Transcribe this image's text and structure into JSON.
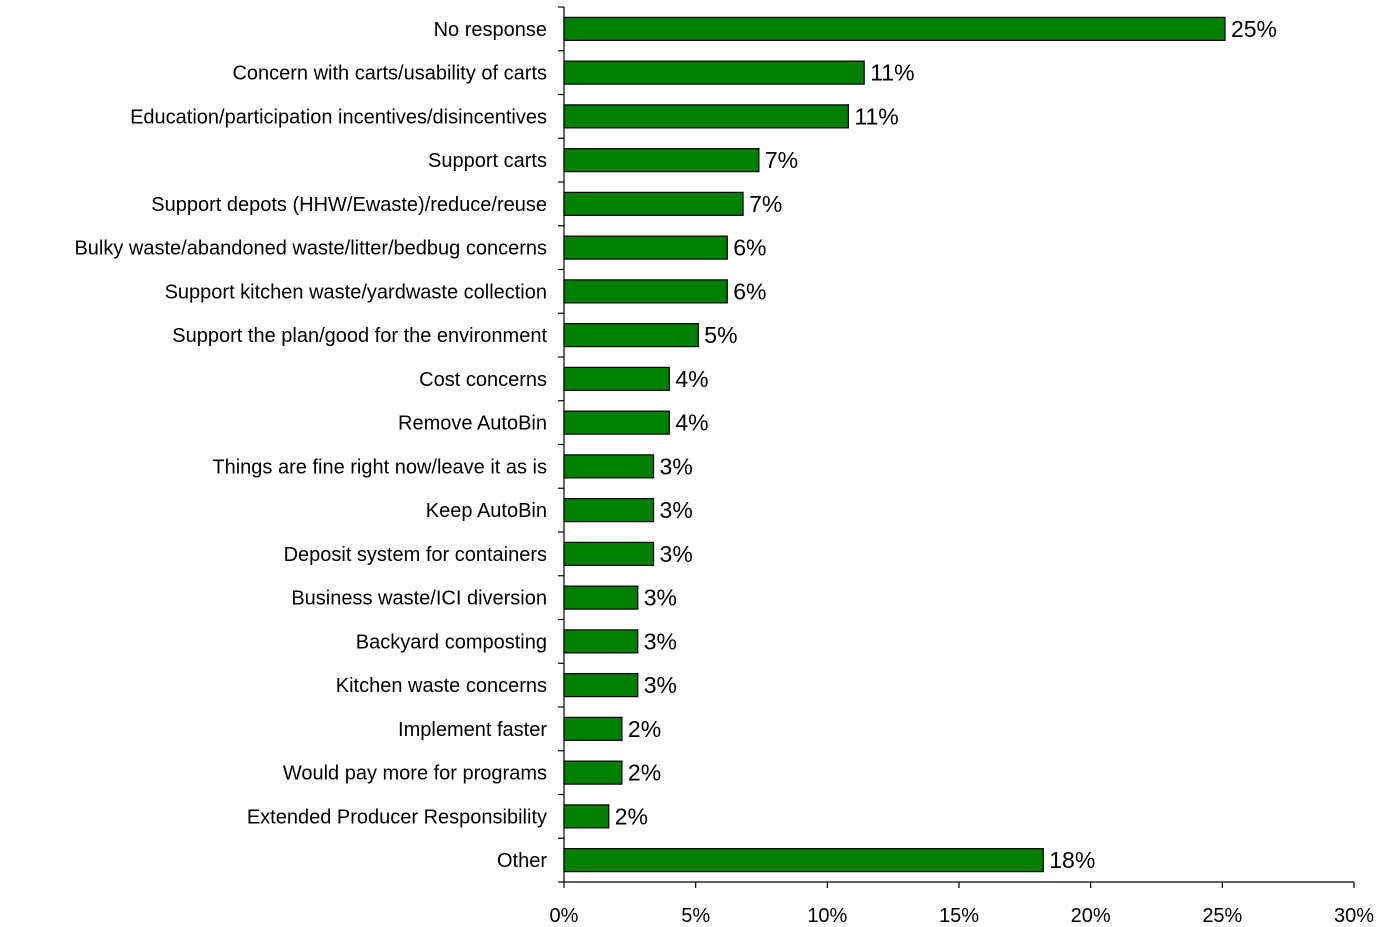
{
  "chart_data": {
    "type": "bar",
    "orientation": "horizontal",
    "categories": [
      "No response",
      "Concern with carts/usability of carts",
      "Education/participation incentives/disincentives",
      "Support carts",
      "Support depots (HHW/Ewaste)/reduce/reuse",
      "Bulky waste/abandoned waste/litter/bedbug concerns",
      "Support kitchen waste/yardwaste collection",
      "Support the plan/good for the environment",
      "Cost concerns",
      "Remove AutoBin",
      "Things are fine right now/leave it as is",
      "Keep AutoBin",
      "Deposit system for containers",
      "Business waste/ICI diversion",
      "Backyard composting",
      "Kitchen waste concerns",
      "Implement faster",
      "Would pay more for programs",
      "Extended Producer Responsibility",
      "Other"
    ],
    "values": [
      25.1,
      11.4,
      10.8,
      7.4,
      6.8,
      6.2,
      6.2,
      5.1,
      4.0,
      4.0,
      3.4,
      3.4,
      3.4,
      2.8,
      2.8,
      2.8,
      2.2,
      2.2,
      1.7,
      18.2
    ],
    "data_labels": [
      "25%",
      "11%",
      "11%",
      "7%",
      "7%",
      "6%",
      "6%",
      "5%",
      "4%",
      "4%",
      "3%",
      "3%",
      "3%",
      "3%",
      "3%",
      "3%",
      "2%",
      "2%",
      "2%",
      "18%"
    ],
    "xlim": [
      0,
      30
    ],
    "xticks": [
      0,
      5,
      10,
      15,
      20,
      25,
      30
    ],
    "xtick_labels": [
      "0%",
      "5%",
      "10%",
      "15%",
      "20%",
      "25%",
      "30%"
    ],
    "title": "",
    "xlabel": "",
    "ylabel": "",
    "grid": false,
    "legend": "none",
    "bar_color": "#008000"
  }
}
